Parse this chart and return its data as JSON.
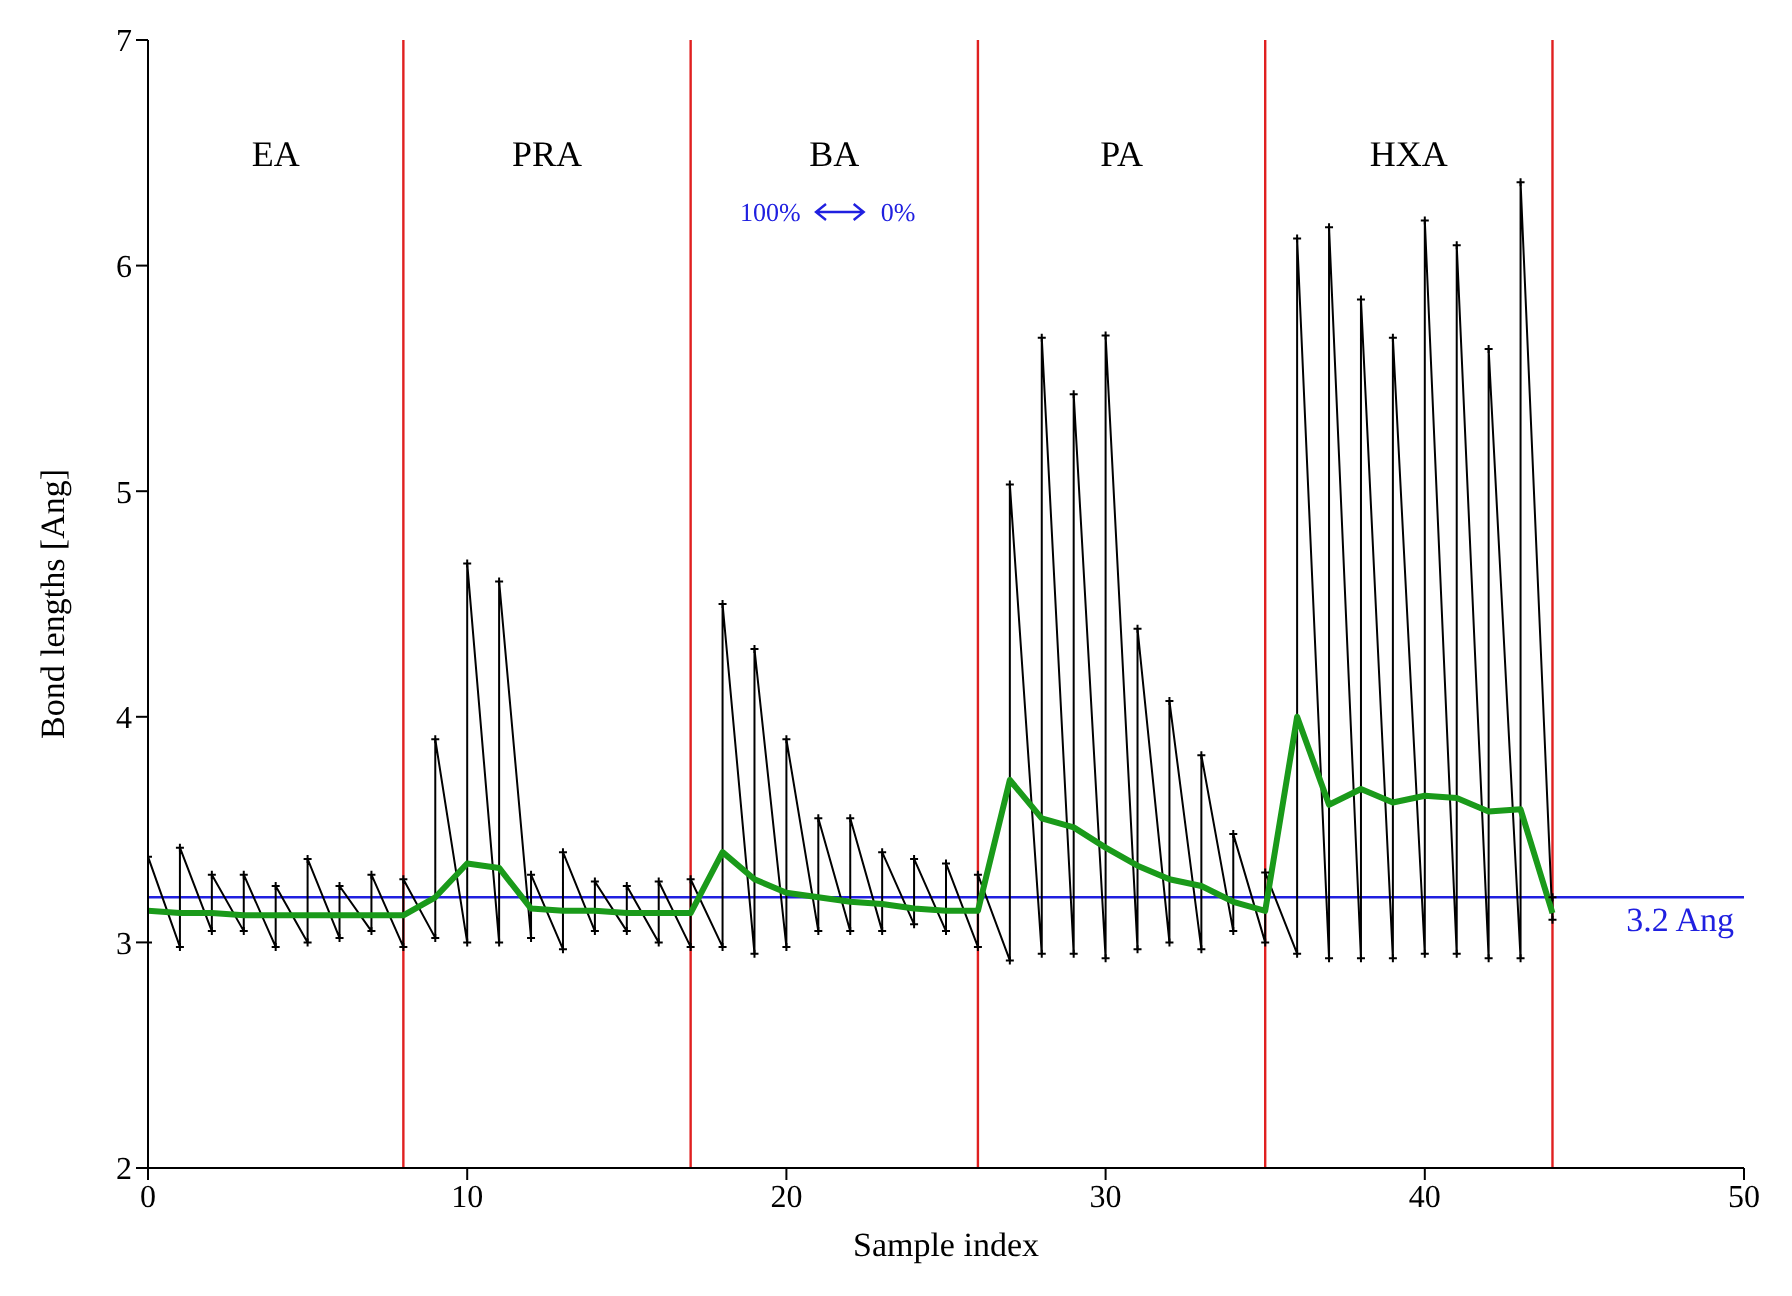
{
  "chart_data": {
    "type": "line",
    "xlabel": "Sample index",
    "ylabel": "Bond lengths [Ang]",
    "xlim": [
      0,
      50
    ],
    "xticks": [
      0,
      10,
      20,
      30,
      40,
      50
    ],
    "ylim": [
      2,
      7
    ],
    "yticks": [
      2,
      3,
      4,
      5,
      6,
      7
    ],
    "grid": false,
    "legend": false,
    "line_style": "solid",
    "series": [
      {
        "color": "#000000",
        "marker": "cross",
        "x": [
          0,
          0,
          1,
          1,
          2,
          2,
          3,
          3,
          4,
          4,
          5,
          5,
          6,
          6,
          7,
          7,
          8,
          8,
          9,
          9,
          10,
          10,
          11,
          11,
          12,
          12,
          13,
          13,
          14,
          14,
          15,
          15,
          16,
          16,
          17,
          17,
          18,
          18,
          19,
          19,
          20,
          20,
          21,
          21,
          22,
          22,
          23,
          23,
          24,
          24,
          25,
          25,
          26,
          26,
          27,
          27,
          28,
          28,
          29,
          29,
          30,
          30,
          31,
          31,
          32,
          32,
          33,
          33,
          34,
          34,
          35,
          35,
          36,
          36,
          37,
          37,
          38,
          38,
          39,
          39,
          40,
          40,
          41,
          41,
          42,
          42,
          43,
          43,
          44,
          44
        ],
        "values": [
          3.0,
          3.38,
          2.98,
          3.42,
          3.05,
          3.3,
          3.05,
          3.3,
          2.98,
          3.25,
          3.0,
          3.37,
          3.02,
          3.25,
          3.05,
          3.3,
          2.98,
          3.28,
          3.02,
          3.9,
          3.0,
          4.68,
          3.0,
          4.6,
          3.02,
          3.3,
          2.97,
          3.4,
          3.05,
          3.27,
          3.05,
          3.25,
          3.0,
          3.27,
          2.98,
          3.28,
          2.98,
          4.5,
          2.95,
          4.3,
          2.98,
          3.9,
          3.05,
          3.55,
          3.05,
          3.55,
          3.05,
          3.4,
          3.08,
          3.37,
          3.05,
          3.35,
          2.98,
          3.3,
          2.92,
          5.03,
          2.95,
          5.68,
          2.95,
          5.43,
          2.93,
          5.69,
          2.97,
          4.39,
          3.0,
          4.07,
          2.97,
          3.83,
          3.05,
          3.48,
          3.0,
          3.31,
          2.95,
          6.12,
          2.93,
          6.17,
          2.93,
          5.85,
          2.93,
          5.68,
          2.95,
          6.2,
          2.95,
          6.09,
          2.93,
          5.63,
          2.93,
          6.37,
          3.1,
          3.2
        ]
      },
      {
        "color": "#1a9a1a",
        "marker": "none",
        "x": [
          0,
          1,
          2,
          3,
          4,
          5,
          6,
          7,
          8,
          9,
          10,
          11,
          12,
          13,
          14,
          15,
          16,
          17,
          18,
          19,
          20,
          21,
          22,
          23,
          24,
          25,
          26,
          27,
          28,
          29,
          30,
          31,
          32,
          33,
          34,
          35,
          36,
          37,
          38,
          39,
          40,
          41,
          42,
          43,
          44
        ],
        "values": [
          3.14,
          3.13,
          3.13,
          3.12,
          3.12,
          3.12,
          3.12,
          3.12,
          3.12,
          3.2,
          3.35,
          3.33,
          3.15,
          3.14,
          3.14,
          3.13,
          3.13,
          3.13,
          3.4,
          3.28,
          3.22,
          3.2,
          3.18,
          3.17,
          3.15,
          3.14,
          3.14,
          3.72,
          3.55,
          3.51,
          3.42,
          3.34,
          3.28,
          3.25,
          3.18,
          3.14,
          4.0,
          3.61,
          3.68,
          3.62,
          3.65,
          3.64,
          3.58,
          3.59,
          3.13
        ]
      }
    ],
    "ref_lines": [
      {
        "axis": "x",
        "value": 8,
        "color": "#e02020"
      },
      {
        "axis": "x",
        "value": 17,
        "color": "#e02020"
      },
      {
        "axis": "x",
        "value": 26,
        "color": "#e02020"
      },
      {
        "axis": "x",
        "value": 35,
        "color": "#e02020"
      },
      {
        "axis": "x",
        "value": 44,
        "color": "#e02020"
      },
      {
        "axis": "y",
        "value": 3.2,
        "label": "3.2 Ang",
        "color": "#2020e0"
      }
    ],
    "annotations": [
      "EA",
      "PRA",
      "BA",
      "PA",
      "HXA",
      "100%",
      "0%"
    ]
  }
}
